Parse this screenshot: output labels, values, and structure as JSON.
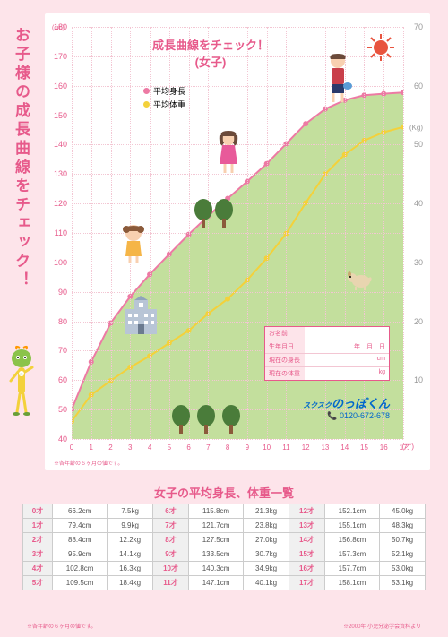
{
  "side_title": "お子様の成長曲線をチェック！",
  "chart": {
    "title_line1": "成長曲線をチェック！",
    "title_line2": "(女子)",
    "y_left_unit": "(cm)",
    "y_right_unit": "(Kg)",
    "x_unit": "(才)",
    "y_left_min": 40,
    "y_left_max": 180,
    "y_left_step": 10,
    "y_right_min": 0,
    "y_right_max": 70,
    "y_right_step": 10,
    "x_min": 0,
    "x_max": 17,
    "x_step": 1,
    "legend": {
      "height_label": "平均身長",
      "weight_label": "平均体重"
    },
    "height_color": "#ed7aa4",
    "weight_color": "#f3d13b",
    "fill_color": "#b8d98c",
    "height_series": [
      50,
      66.2,
      79.4,
      88.4,
      95.9,
      102.8,
      109.5,
      115.8,
      121.7,
      127.5,
      133.5,
      140.3,
      147.1,
      152.1,
      155.1,
      156.8,
      157.3,
      157.7,
      158.1
    ],
    "weight_series": [
      3,
      7.5,
      9.9,
      12.2,
      14.1,
      16.3,
      18.4,
      21.3,
      23.8,
      27.0,
      30.7,
      34.9,
      40.1,
      45.0,
      48.3,
      50.7,
      52.1,
      53.0,
      53.1
    ]
  },
  "form": {
    "name_label": "お名前",
    "dob_label": "生年月日",
    "dob_val": "年　月　日",
    "height_label": "現在の身長",
    "height_unit": "cm",
    "weight_label": "現在の体重",
    "weight_unit": "kg"
  },
  "logo": {
    "prefix": "スクスク",
    "name": "のっぽくん",
    "phone_label": "📞 0120-672-678"
  },
  "table_title": "女子の平均身長、体重一覧",
  "table_rows": [
    [
      "0才",
      "66.2cm",
      "7.5kg",
      "6才",
      "115.8cm",
      "21.3kg",
      "12才",
      "152.1cm",
      "45.0kg"
    ],
    [
      "1才",
      "79.4cm",
      "9.9kg",
      "7才",
      "121.7cm",
      "23.8kg",
      "13才",
      "155.1cm",
      "48.3kg"
    ],
    [
      "2才",
      "88.4cm",
      "12.2kg",
      "8才",
      "127.5cm",
      "27.0kg",
      "14才",
      "156.8cm",
      "50.7kg"
    ],
    [
      "3才",
      "95.9cm",
      "14.1kg",
      "9才",
      "133.5cm",
      "30.7kg",
      "15才",
      "157.3cm",
      "52.1kg"
    ],
    [
      "4才",
      "102.8cm",
      "16.3kg",
      "10才",
      "140.3cm",
      "34.9kg",
      "16才",
      "157.7cm",
      "53.0kg"
    ],
    [
      "5才",
      "109.5cm",
      "18.4kg",
      "11才",
      "147.1cm",
      "40.1kg",
      "17才",
      "158.1cm",
      "53.1kg"
    ]
  ],
  "footnote_left": "※各年齢の６ヶ月の値です。",
  "footnote_right": "※2000年 小児分泌学会資料より"
}
